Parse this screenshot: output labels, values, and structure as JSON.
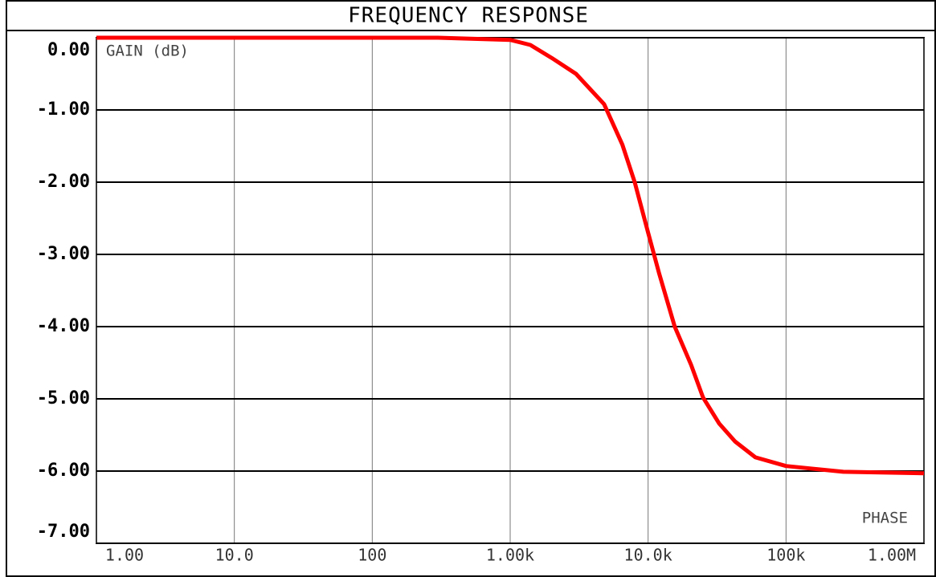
{
  "chart_data": {
    "type": "line",
    "title": "FREQUENCY RESPONSE",
    "ylabel": "GAIN (dB)",
    "annotation": "PHASE",
    "x": [
      1,
      10,
      100,
      300,
      1000,
      1400,
      2000,
      3000,
      4800,
      6500,
      8000,
      10000,
      12000,
      15600,
      20500,
      25000,
      32700,
      42700,
      60000,
      100000,
      260000,
      1000000
    ],
    "series": [
      {
        "name": "GAIN",
        "color": "#ff0000",
        "values": [
          0,
          0,
          0,
          0,
          -0.03,
          -0.1,
          -0.28,
          -0.5,
          -0.92,
          -1.48,
          -2.0,
          -2.7,
          -3.26,
          -4.0,
          -4.53,
          -4.98,
          -5.34,
          -5.59,
          -5.81,
          -5.93,
          -6.01,
          -6.03
        ]
      }
    ],
    "xlog": true,
    "xlim": [
      1,
      1000000
    ],
    "xticks": [
      {
        "value": 1,
        "label": "1.00"
      },
      {
        "value": 10,
        "label": "10.0"
      },
      100,
      {
        "value": 1000,
        "label": "1.00k"
      },
      {
        "value": 10000,
        "label": "10.0k"
      },
      {
        "value": 100000,
        "label": "100k"
      },
      {
        "value": 1000000,
        "label": "1.00M"
      }
    ],
    "ylim": [
      -7,
      0
    ],
    "yticks": [
      {
        "value": 0,
        "label": "0.00"
      },
      {
        "value": -1,
        "label": "-1.00"
      },
      {
        "value": -2,
        "label": "-2.00"
      },
      {
        "value": -3,
        "label": "-3.00"
      },
      {
        "value": -4,
        "label": "-4.00"
      },
      {
        "value": -5,
        "label": "-5.00"
      },
      {
        "value": -6,
        "label": "-6.00"
      },
      {
        "value": -7,
        "label": "-7.00"
      }
    ],
    "grid": true
  }
}
